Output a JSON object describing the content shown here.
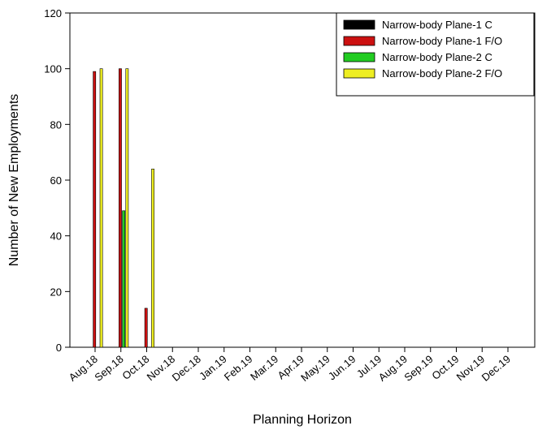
{
  "chart_data": {
    "type": "bar",
    "xlabel": "Planning Horizon",
    "ylabel": "Number of New Employments",
    "ylim": [
      0,
      120
    ],
    "yticks": [
      0,
      20,
      40,
      60,
      80,
      100,
      120
    ],
    "grid": false,
    "legend_position": "top-right",
    "categories": [
      "Aug.18",
      "Sep.18",
      "Oct.18",
      "Nov.18",
      "Dec.18",
      "Jan.19",
      "Feb.19",
      "Mar.19",
      "Apr.19",
      "May.19",
      "Jun.19",
      "Jul.19",
      "Aug.19",
      "Sep.19",
      "Oct.19",
      "Nov.19",
      "Dec.19"
    ],
    "series": [
      {
        "name": "Narrow-body Plane-1 C",
        "color": "#000000",
        "values": [
          0,
          0,
          0,
          0,
          0,
          0,
          0,
          0,
          0,
          0,
          0,
          0,
          0,
          0,
          0,
          0,
          0
        ]
      },
      {
        "name": "Narrow-body Plane-1 F/O",
        "color": "#cc1111",
        "values": [
          99,
          100,
          14,
          0,
          0,
          0,
          0,
          0,
          0,
          0,
          0,
          0,
          0,
          0,
          0,
          0,
          0
        ]
      },
      {
        "name": "Narrow-body Plane-2 C",
        "color": "#22cc22",
        "values": [
          0,
          49,
          0,
          0,
          0,
          0,
          0,
          0,
          0,
          0,
          0,
          0,
          0,
          0,
          0,
          0,
          0
        ]
      },
      {
        "name": "Narrow-body Plane-2 F/O",
        "color": "#eeee22",
        "values": [
          100,
          100,
          64,
          0,
          0,
          0,
          0,
          0,
          0,
          0,
          0,
          0,
          0,
          0,
          0,
          0,
          0
        ]
      }
    ]
  }
}
